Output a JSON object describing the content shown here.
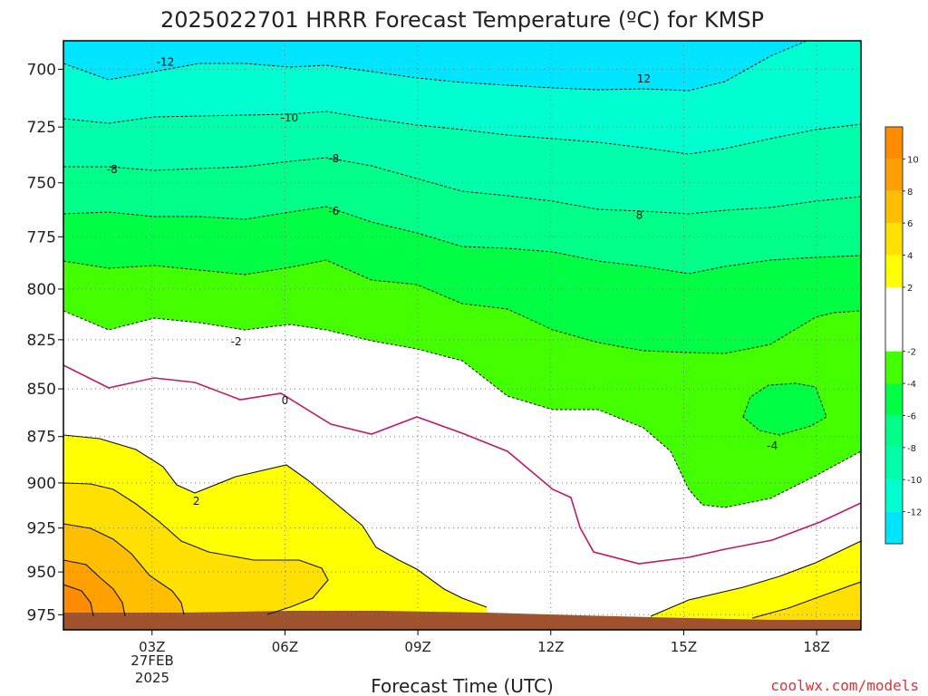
{
  "chart_data": {
    "type": "contour",
    "title": "2025022701 HRRR Forecast Temperature (ºC) for KMSP",
    "xlabel": "Forecast Time (UTC)",
    "credit": "coolwx.com/models",
    "date_label": "27FEB",
    "year_label": "2025",
    "x_ticks": [
      "03Z",
      "06Z",
      "09Z",
      "12Z",
      "15Z",
      "18Z"
    ],
    "x_range_hours": [
      1,
      19
    ],
    "y_ticks": [
      "700",
      "725",
      "750",
      "775",
      "800",
      "825",
      "850",
      "875",
      "900",
      "925",
      "950",
      "975"
    ],
    "y_range_hpa": [
      688,
      984
    ],
    "y_scale": "log-pressure",
    "grid": "dotted",
    "colorbar": {
      "labels": [
        "10",
        "8",
        "6",
        "4",
        "2",
        "-2",
        "-4",
        "-6",
        "-8",
        "-10",
        "-12"
      ],
      "range": [
        -14,
        12
      ],
      "bands": [
        {
          "min": 10,
          "max": 12,
          "color": "#ff8c00"
        },
        {
          "min": 8,
          "max": 10,
          "color": "#ffa000"
        },
        {
          "min": 6,
          "max": 8,
          "color": "#ffbf00"
        },
        {
          "min": 4,
          "max": 6,
          "color": "#ffe000"
        },
        {
          "min": 2,
          "max": 4,
          "color": "#ffff00"
        },
        {
          "min": -2,
          "max": 2,
          "color": "#ffffff"
        },
        {
          "min": -4,
          "max": -2,
          "color": "#44ff00"
        },
        {
          "min": -6,
          "max": -4,
          "color": "#00ff44"
        },
        {
          "min": -8,
          "max": -6,
          "color": "#00ff88"
        },
        {
          "min": -10,
          "max": -8,
          "color": "#00ffaa"
        },
        {
          "min": -12,
          "max": -10,
          "color": "#00ffd0"
        },
        {
          "min": -14,
          "max": -12,
          "color": "#00e5ff"
        }
      ]
    },
    "fills": [
      {
        "level": "<-12",
        "color": "#00e5ff"
      },
      {
        "level": "-12",
        "color": "#00ffd0"
      },
      {
        "level": "-10",
        "color": "#00ffaa"
      },
      {
        "level": "-8",
        "color": "#00ff88"
      },
      {
        "level": "-6",
        "color": "#00ff44"
      },
      {
        "level": "-4",
        "color": "#44ff00"
      },
      {
        "level": "-2",
        "color": "#ffffff"
      },
      {
        "level": "2",
        "color": "#ffff00"
      },
      {
        "level": "4",
        "color": "#ffe000"
      },
      {
        "level": "6",
        "color": "#ffbf00"
      },
      {
        "level": "8",
        "color": "#ffa000"
      },
      {
        "level": "10",
        "color": "#ff8c00"
      },
      {
        "level": "terrain",
        "color": "#a0522d"
      }
    ],
    "zero_line_color": "#c0186a",
    "contour_labels": [
      {
        "text": "-12",
        "hour": 3.3,
        "hpa": 697
      },
      {
        "text": "12",
        "hour": 14.1,
        "hpa": 704
      },
      {
        "text": "-10",
        "hour": 6.1,
        "hpa": 721
      },
      {
        "text": "-8",
        "hour": 2.1,
        "hpa": 744
      },
      {
        "text": "-8",
        "hour": 7.1,
        "hpa": 739
      },
      {
        "text": "8",
        "hour": 14.0,
        "hpa": 765
      },
      {
        "text": "-6",
        "hour": 7.1,
        "hpa": 763
      },
      {
        "text": "-2",
        "hour": 4.9,
        "hpa": 826
      },
      {
        "text": "0",
        "hour": 6.0,
        "hpa": 856
      },
      {
        "text": "-4",
        "hour": 17.0,
        "hpa": 880
      },
      {
        "text": "2",
        "hour": 4.0,
        "hpa": 910
      }
    ]
  }
}
